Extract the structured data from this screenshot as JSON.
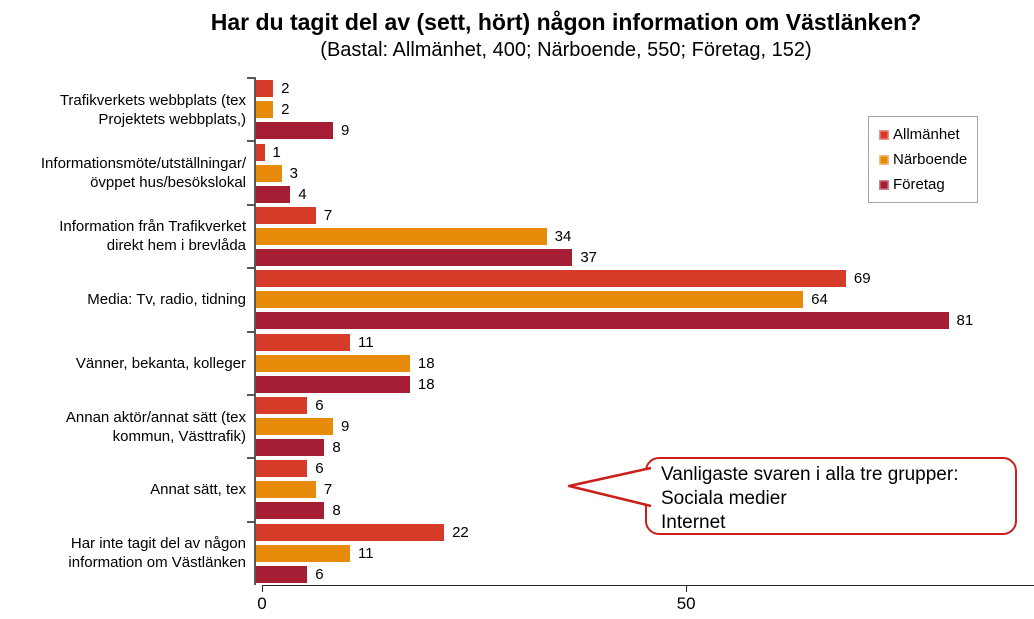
{
  "chart_data": {
    "type": "bar",
    "orientation": "horizontal",
    "title": "Har du tagit del av (sett, hört) någon information om Västlänken?",
    "subtitle": "(Bastal: Allmänhet, 400; Närboende, 550; Företag, 152)",
    "categories": [
      "Trafikverkets webbplats (tex\nProjektets webbplats,)",
      "Informationsmöte/utställningar/\növppet hus/besökslokal",
      "Information från Trafikverket\ndirekt hem i brevlåda",
      "Media: Tv, radio, tidning",
      "Vänner, bekanta, kolleger",
      "Annan aktör/annat sätt (tex\nkommun, Västtrafik)",
      "Annat sätt, tex",
      "Har inte tagit del av någon\ninformation om Västlänken"
    ],
    "series": [
      {
        "name": "Allmänhet",
        "color": "#d63a28",
        "values": [
          2,
          1,
          7,
          69,
          11,
          6,
          6,
          22
        ]
      },
      {
        "name": "Närboende",
        "color": "#e88b0a",
        "values": [
          2,
          3,
          34,
          64,
          18,
          9,
          7,
          11
        ]
      },
      {
        "name": "Företag",
        "color": "#a61e33",
        "values": [
          9,
          4,
          37,
          81,
          18,
          8,
          8,
          6
        ]
      }
    ],
    "xlim": [
      0,
      91
    ],
    "x_ticks": [
      0,
      50
    ],
    "grid": false,
    "value_labels": true,
    "legend_position": "top-right"
  },
  "colors": {
    "axis": "#595959",
    "axis_line": "#262626",
    "callout_border": "#cc1f1a"
  },
  "callout": {
    "lines": [
      "Vanligaste svaren i alla tre grupper:",
      "Sociala medier",
      "Internet"
    ]
  }
}
